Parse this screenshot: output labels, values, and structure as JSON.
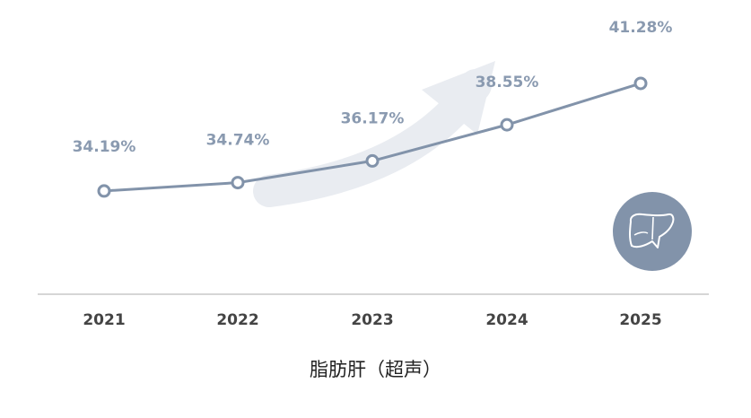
{
  "chart_data": {
    "type": "line",
    "categories": [
      "2021",
      "2022",
      "2023",
      "2024",
      "2025"
    ],
    "values": [
      34.19,
      34.74,
      36.17,
      38.55,
      41.28
    ],
    "value_labels": [
      "34.19%",
      "34.74%",
      "36.17%",
      "38.55%",
      "41.28%"
    ],
    "title": "",
    "xlabel": "脂肪肝（超声）",
    "ylabel": "",
    "ylim": [
      20,
      45
    ],
    "grid": false,
    "legend": "none"
  },
  "colors": {
    "line": "#8293aa",
    "label": "#8a9ab0",
    "arrow": "#e9ecf1",
    "axis": "#d6d6d6",
    "badge": "#8293aa"
  },
  "icons": {
    "trend_arrow": "up-arrow-icon",
    "organ": "liver-icon"
  }
}
